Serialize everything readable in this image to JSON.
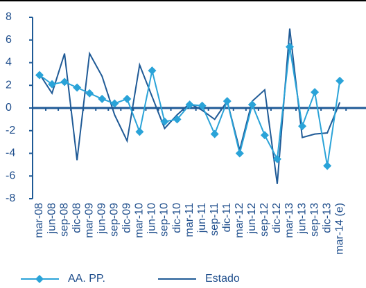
{
  "chart_data": {
    "type": "line",
    "categories": [
      "mar-08",
      "jun-08",
      "sep-08",
      "dic-08",
      "mar-09",
      "jun-09",
      "sep-09",
      "dic-09",
      "mar-10",
      "jun-10",
      "sep-10",
      "dic-10",
      "mar-11",
      "jun-11",
      "sep-11",
      "dic-11",
      "mar-12",
      "jun-12",
      "sep-12",
      "dic-12",
      "mar-13",
      "jun-13",
      "sep-13",
      "dic-13",
      "mar-14 (e)"
    ],
    "series": [
      {
        "name": "AA. PP.",
        "color": "#2aa3d8",
        "marker": "diamond",
        "values": [
          2.9,
          2.1,
          2.3,
          1.8,
          1.3,
          0.8,
          0.4,
          0.8,
          -2.1,
          3.3,
          -1.2,
          -1.0,
          0.3,
          0.2,
          -2.3,
          0.6,
          -4.0,
          0.3,
          -2.4,
          -4.5,
          5.4,
          -1.6,
          1.4,
          -5.1,
          2.4
        ]
      },
      {
        "name": "Estado",
        "color": "#1f5a96",
        "values": [
          3.0,
          1.3,
          4.8,
          -4.6,
          4.8,
          2.8,
          -0.6,
          -2.9,
          3.8,
          1.0,
          -1.8,
          -0.6,
          0.4,
          -0.2,
          -1.0,
          0.6,
          -3.7,
          0.6,
          1.6,
          -6.7,
          7.0,
          -2.6,
          -2.3,
          -2.2,
          0.5
        ]
      }
    ],
    "ylim": [
      -8,
      8
    ],
    "yticks": [
      -8,
      -6,
      -4,
      -2,
      0,
      2,
      4,
      6,
      8
    ],
    "legend": "bottom"
  }
}
